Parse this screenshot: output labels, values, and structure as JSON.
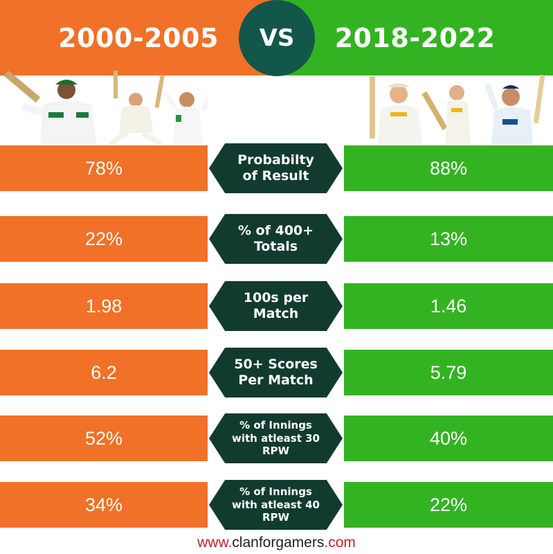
{
  "header": {
    "left_period": "2000-2005",
    "vs_label": "VS",
    "right_period": "2018-2022"
  },
  "colors": {
    "left_orange": "#f07127",
    "right_green": "#34b322",
    "metric_dark": "#123b30",
    "vs_circle": "#13574a",
    "footer_red": "#c41d2a",
    "footer_dark": "#222222"
  },
  "chart_data": {
    "type": "table",
    "columns": [
      "2000-2005",
      "2018-2022"
    ],
    "rows": [
      {
        "metric_line1": "Probabilty",
        "metric_line2": "of Result",
        "metric_line3": "",
        "left": "78%",
        "right": "88%"
      },
      {
        "metric_line1": "% of 400+",
        "metric_line2": "Totals",
        "metric_line3": "",
        "left": "22%",
        "right": "13%"
      },
      {
        "metric_line1": "100s per",
        "metric_line2": "Match",
        "metric_line3": "",
        "left": "1.98",
        "right": "1.46"
      },
      {
        "metric_line1": "50+ Scores",
        "metric_line2": "Per Match",
        "metric_line3": "",
        "left": "6.2",
        "right": "5.79"
      },
      {
        "metric_line1": "% of Innings",
        "metric_line2": "with atleast 30",
        "metric_line3": "RPW",
        "left": "52%",
        "right": "40%"
      },
      {
        "metric_line1": "% of Innings",
        "metric_line2": "with atleast 40",
        "metric_line3": "RPW",
        "left": "34%",
        "right": "22%"
      }
    ]
  },
  "footer": {
    "prefix": "www.",
    "domain": "clanforgamers",
    "suffix": ".com"
  }
}
